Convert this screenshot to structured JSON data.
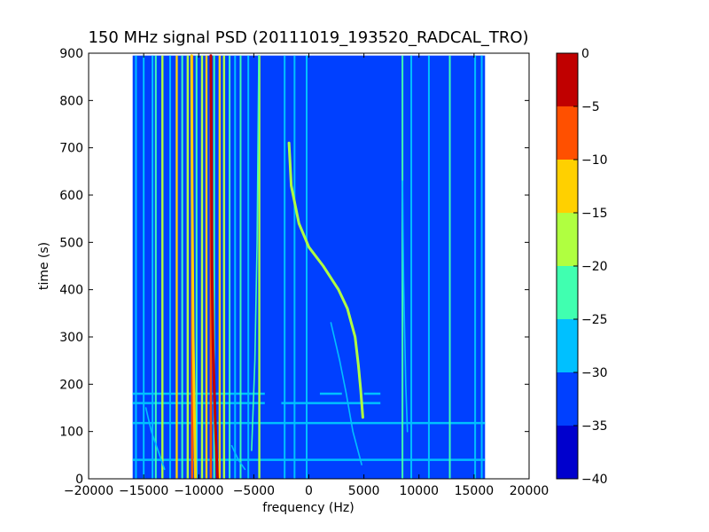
{
  "chart_data": {
    "type": "heatmap",
    "title": "150 MHz signal PSD (20111019_193520_RADCAL_TRO)",
    "xlabel": "frequency (Hz)",
    "ylabel": "time (s)",
    "xlim": [
      -20000,
      20000
    ],
    "ylim": [
      0,
      900
    ],
    "xticks": [
      -20000,
      -15000,
      -10000,
      -5000,
      0,
      5000,
      10000,
      15000,
      20000
    ],
    "xtick_labels": [
      "−20000",
      "−15000",
      "−10000",
      "−5000",
      "0",
      "5000",
      "10000",
      "15000",
      "20000"
    ],
    "yticks": [
      0,
      100,
      200,
      300,
      400,
      500,
      600,
      700,
      800,
      900
    ],
    "ytick_labels": [
      "0",
      "100",
      "200",
      "300",
      "400",
      "500",
      "600",
      "700",
      "800",
      "900"
    ],
    "data_extent": {
      "x": [
        -16000,
        16000
      ],
      "y": [
        0,
        895
      ]
    },
    "background_level": -35,
    "colorbar": {
      "range": [
        -40,
        0
      ],
      "levels": [
        -40,
        -35,
        -30,
        -25,
        -20,
        -15,
        -10,
        -5,
        0
      ],
      "tick_labels": [
        "−40",
        "−35",
        "−30",
        "−25",
        "−20",
        "−15",
        "−10",
        "−5",
        "0"
      ],
      "colors": [
        "#0000cd",
        "#0040ff",
        "#00c0ff",
        "#40ffb0",
        "#b0ff40",
        "#ffd000",
        "#ff5000",
        "#c00000"
      ]
    },
    "vertical_lines": [
      {
        "freq": -15700,
        "level": -30
      },
      {
        "freq": -15000,
        "level": -30
      },
      {
        "freq": -14200,
        "level": -30
      },
      {
        "freq": -13900,
        "level": -25
      },
      {
        "freq": -13300,
        "level": -20
      },
      {
        "freq": -12600,
        "level": -30
      },
      {
        "freq": -12000,
        "level": -15
      },
      {
        "freq": -11500,
        "level": -25
      },
      {
        "freq": -11000,
        "level": -20
      },
      {
        "freq": -10600,
        "level": -10
      },
      {
        "freq": -10200,
        "level": -25
      },
      {
        "freq": -9700,
        "level": -20
      },
      {
        "freq": -9300,
        "level": -15
      },
      {
        "freq": -8900,
        "level": -10
      },
      {
        "freq": -8600,
        "level": -25
      },
      {
        "freq": -8100,
        "level": -15
      },
      {
        "freq": -7700,
        "level": -20
      },
      {
        "freq": -7200,
        "level": -25
      },
      {
        "freq": -6700,
        "level": -30
      },
      {
        "freq": -6200,
        "level": -25
      },
      {
        "freq": -5500,
        "level": -30
      },
      {
        "freq": -4500,
        "level": -20
      },
      {
        "freq": -2200,
        "level": -30
      },
      {
        "freq": -1300,
        "level": -30
      },
      {
        "freq": -200,
        "level": -30
      },
      {
        "freq": 8500,
        "level": -25
      },
      {
        "freq": 9300,
        "level": -30
      },
      {
        "freq": 10900,
        "level": -30
      },
      {
        "freq": 12800,
        "level": -25
      },
      {
        "freq": 15100,
        "level": -30
      },
      {
        "freq": 15700,
        "level": -30
      }
    ],
    "drift_traces": [
      {
        "level": -5,
        "points": [
          [
            -8300,
            0
          ],
          [
            -8500,
            120
          ],
          [
            -8700,
            280
          ],
          [
            -8800,
            450
          ],
          [
            -8850,
            700
          ],
          [
            -8900,
            895
          ]
        ]
      },
      {
        "level": -15,
        "points": [
          [
            -10300,
            0
          ],
          [
            -10500,
            300
          ],
          [
            -10600,
            600
          ],
          [
            -10650,
            895
          ]
        ]
      },
      {
        "level": -25,
        "points": [
          [
            -5200,
            60
          ],
          [
            -4900,
            250
          ],
          [
            -4700,
            500
          ],
          [
            -4550,
            895
          ]
        ]
      },
      {
        "level": -20,
        "points": [
          [
            -1800,
            710
          ],
          [
            -1600,
            620
          ],
          [
            -900,
            540
          ],
          [
            0,
            490
          ],
          [
            1300,
            450
          ],
          [
            2700,
            400
          ],
          [
            3500,
            360
          ],
          [
            4200,
            300
          ],
          [
            4500,
            240
          ],
          [
            4700,
            190
          ],
          [
            4900,
            130
          ]
        ]
      },
      {
        "level": -30,
        "points": [
          [
            2000,
            330
          ],
          [
            2800,
            250
          ],
          [
            3400,
            180
          ],
          [
            4000,
            100
          ],
          [
            4800,
            30
          ]
        ]
      },
      {
        "level": -30,
        "points": [
          [
            -14800,
            150
          ],
          [
            -14300,
            100
          ],
          [
            -13700,
            60
          ],
          [
            -13100,
            20
          ]
        ]
      },
      {
        "level": -30,
        "points": [
          [
            -7000,
            70
          ],
          [
            -6400,
            40
          ],
          [
            -5800,
            20
          ]
        ]
      },
      {
        "level": -30,
        "points": [
          [
            8500,
            630
          ],
          [
            8600,
            420
          ],
          [
            8800,
            200
          ],
          [
            8950,
            100
          ]
        ]
      }
    ],
    "horizontal_bands": [
      {
        "time": 40,
        "freq_range": [
          -16000,
          16000
        ],
        "level": -30
      },
      {
        "time": 118,
        "freq_range": [
          -16000,
          16000
        ],
        "level": -30
      },
      {
        "time": 160,
        "freq_range": [
          -16000,
          -4000
        ],
        "level": -30
      },
      {
        "time": 160,
        "freq_range": [
          -2500,
          6500
        ],
        "level": -30
      },
      {
        "time": 180,
        "freq_range": [
          -16000,
          -4000
        ],
        "level": -30
      },
      {
        "time": 180,
        "freq_range": [
          1000,
          3000
        ],
        "level": -30
      },
      {
        "time": 180,
        "freq_range": [
          5000,
          6500
        ],
        "level": -30
      }
    ]
  }
}
